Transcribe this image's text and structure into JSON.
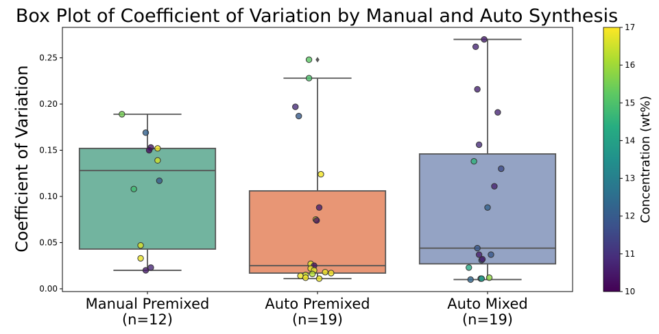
{
  "chart_data": {
    "type": "box",
    "title": "Box Plot of Coefficient of Variation by Manual and Auto Synthesis",
    "xlabel": "",
    "ylabel": "Coefficient of Variation",
    "ylim": [
      -0.003,
      0.283
    ],
    "yticks": [
      0.0,
      0.05,
      0.1,
      0.15,
      0.2,
      0.25
    ],
    "ytick_labels": [
      "0.00",
      "0.05",
      "0.10",
      "0.15",
      "0.20",
      "0.25"
    ],
    "categories": [
      {
        "line1": "Manual Premixed",
        "line2": "(n=12)"
      },
      {
        "line1": "Auto Premixed",
        "line2": "(n=19)"
      },
      {
        "line1": "Auto Mixed",
        "line2": "(n=19)"
      }
    ],
    "boxes": [
      {
        "q1": 0.043,
        "median": 0.128,
        "q3": 0.152,
        "whisker_low": 0.02,
        "whisker_high": 0.189,
        "outliers": [],
        "color": "#72b49f"
      },
      {
        "q1": 0.017,
        "median": 0.025,
        "q3": 0.106,
        "whisker_low": 0.011,
        "whisker_high": 0.228,
        "outliers": [
          0.248
        ],
        "color": "#e89675"
      },
      {
        "q1": 0.027,
        "median": 0.044,
        "q3": 0.146,
        "whisker_low": 0.01,
        "whisker_high": 0.27,
        "outliers": [],
        "color": "#94a3c4"
      }
    ],
    "points": [
      [
        {
          "jitter": -0.15,
          "y": 0.189,
          "c": 15.5
        },
        {
          "jitter": -0.01,
          "y": 0.169,
          "c": 12.2
        },
        {
          "jitter": 0.02,
          "y": 0.153,
          "c": 10.4
        },
        {
          "jitter": 0.06,
          "y": 0.152,
          "c": 16.9
        },
        {
          "jitter": 0.01,
          "y": 0.15,
          "c": 10.2
        },
        {
          "jitter": 0.06,
          "y": 0.139,
          "c": 16.5
        },
        {
          "jitter": 0.07,
          "y": 0.117,
          "c": 12.0
        },
        {
          "jitter": -0.08,
          "y": 0.108,
          "c": 14.8
        },
        {
          "jitter": -0.04,
          "y": 0.047,
          "c": 16.6
        },
        {
          "jitter": -0.04,
          "y": 0.033,
          "c": 16.8
        },
        {
          "jitter": 0.02,
          "y": 0.023,
          "c": 10.8
        },
        {
          "jitter": -0.01,
          "y": 0.02,
          "c": 10.5
        }
      ],
      [
        {
          "jitter": -0.05,
          "y": 0.248,
          "c": 15.2
        },
        {
          "jitter": -0.05,
          "y": 0.228,
          "c": 15.0
        },
        {
          "jitter": -0.13,
          "y": 0.197,
          "c": 10.9
        },
        {
          "jitter": -0.11,
          "y": 0.187,
          "c": 12.0
        },
        {
          "jitter": 0.02,
          "y": 0.124,
          "c": 16.9
        },
        {
          "jitter": 0.01,
          "y": 0.088,
          "c": 10.6
        },
        {
          "jitter": -0.01,
          "y": 0.075,
          "c": 16.8
        },
        {
          "jitter": -0.005,
          "y": 0.074,
          "c": 10.3
        },
        {
          "jitter": -0.04,
          "y": 0.027,
          "c": 16.7
        },
        {
          "jitter": -0.02,
          "y": 0.025,
          "c": 10.4
        },
        {
          "jitter": -0.04,
          "y": 0.022,
          "c": 16.8
        },
        {
          "jitter": -0.02,
          "y": 0.02,
          "c": 16.7
        },
        {
          "jitter": 0.045,
          "y": 0.018,
          "c": 16.8
        },
        {
          "jitter": 0.08,
          "y": 0.017,
          "c": 16.9
        },
        {
          "jitter": -0.07,
          "y": 0.015,
          "c": 16.5
        },
        {
          "jitter": -0.1,
          "y": 0.014,
          "c": 16.8
        },
        {
          "jitter": -0.03,
          "y": 0.016,
          "c": 16.2
        },
        {
          "jitter": -0.07,
          "y": 0.012,
          "c": 16.9
        },
        {
          "jitter": 0.01,
          "y": 0.011,
          "c": 16.8
        }
      ],
      [
        {
          "jitter": -0.02,
          "y": 0.27,
          "c": 10.6
        },
        {
          "jitter": -0.07,
          "y": 0.262,
          "c": 10.8
        },
        {
          "jitter": -0.06,
          "y": 0.216,
          "c": 10.7
        },
        {
          "jitter": 0.06,
          "y": 0.191,
          "c": 10.8
        },
        {
          "jitter": -0.05,
          "y": 0.156,
          "c": 10.9
        },
        {
          "jitter": -0.08,
          "y": 0.138,
          "c": 14.5
        },
        {
          "jitter": 0.08,
          "y": 0.13,
          "c": 11.6
        },
        {
          "jitter": 0.04,
          "y": 0.111,
          "c": 10.7
        },
        {
          "jitter": 0.0,
          "y": 0.088,
          "c": 12.2
        },
        {
          "jitter": -0.06,
          "y": 0.044,
          "c": 11.9
        },
        {
          "jitter": -0.05,
          "y": 0.037,
          "c": 10.6
        },
        {
          "jitter": 0.02,
          "y": 0.037,
          "c": 11.9
        },
        {
          "jitter": -0.035,
          "y": 0.031,
          "c": 11.8
        },
        {
          "jitter": -0.03,
          "y": 0.032,
          "c": 10.5
        },
        {
          "jitter": -0.11,
          "y": 0.023,
          "c": 14.2
        },
        {
          "jitter": -0.1,
          "y": 0.01,
          "c": 12.3
        },
        {
          "jitter": -0.04,
          "y": 0.011,
          "c": 12.1
        },
        {
          "jitter": -0.035,
          "y": 0.011,
          "c": 14.0
        },
        {
          "jitter": 0.01,
          "y": 0.012,
          "c": 15.8
        }
      ]
    ],
    "colorbar": {
      "label": "Concentration (wt%)",
      "colormap": "viridis",
      "range": [
        10,
        17
      ],
      "ticks": [
        10,
        11,
        12,
        13,
        14,
        15,
        16,
        17
      ],
      "tick_labels": [
        "10",
        "11",
        "12",
        "13",
        "14",
        "15",
        "16",
        "17"
      ]
    },
    "grid": false,
    "legend": "none"
  }
}
